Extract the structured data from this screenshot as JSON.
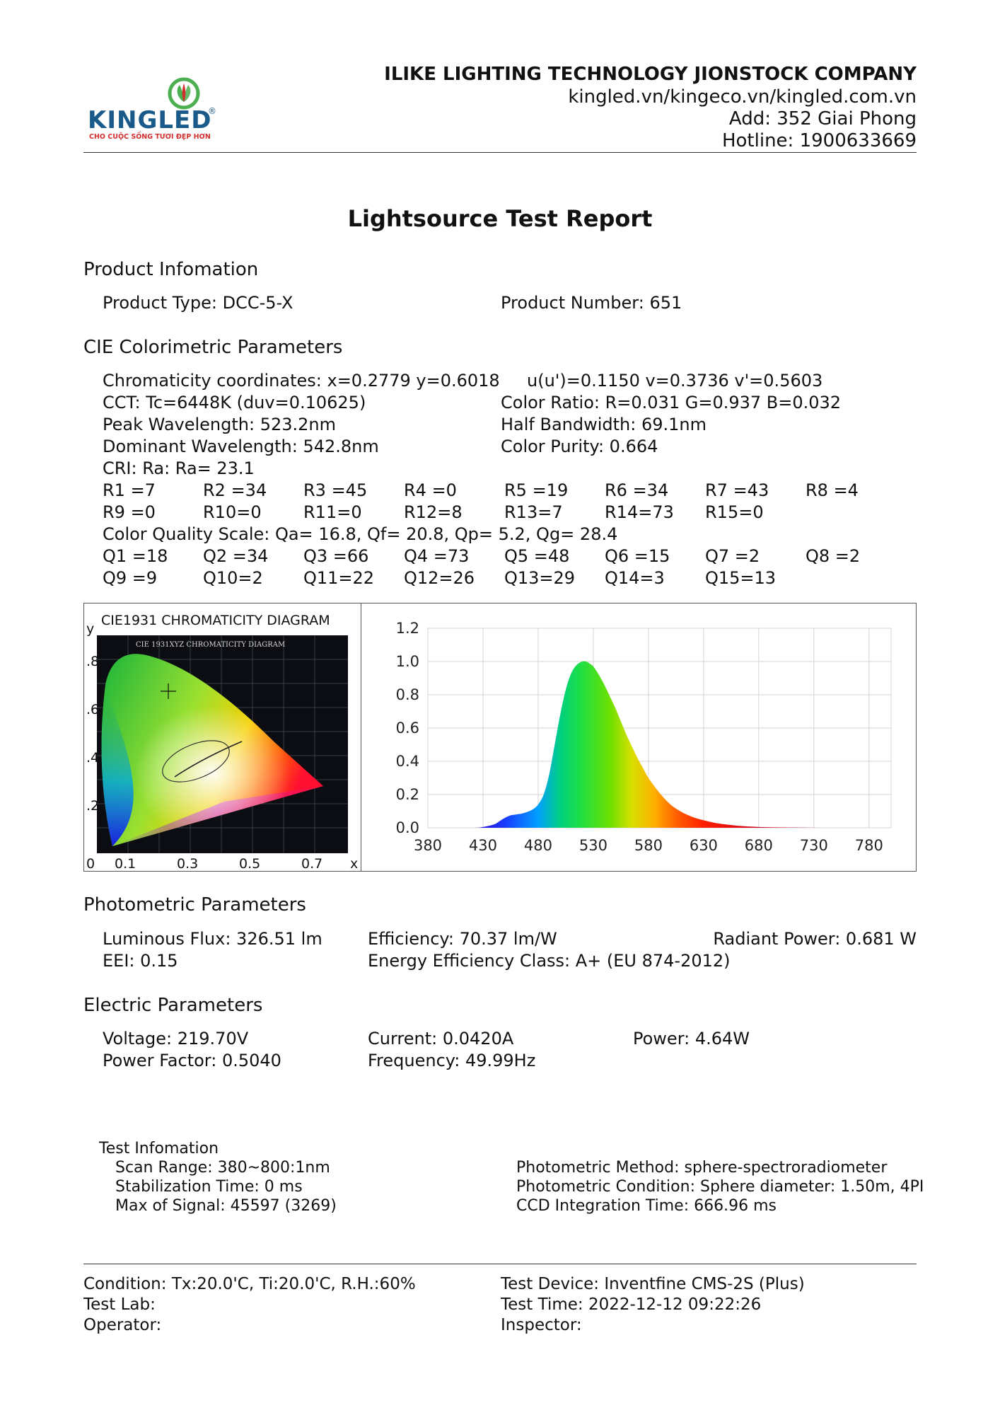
{
  "header": {
    "company": "ILIKE LIGHTING TECHNOLOGY JIONSTOCK COMPANY",
    "websites": "kingled.vn/kingeco.vn/kingled.com.vn",
    "address": "Add: 352 Giai Phong",
    "hotline": "Hotline: 1900633669",
    "logo_text": "KINGLED",
    "logo_tagline": "CHO CUỘC SỐNG TƯƠI ĐẸP HƠN",
    "logo_registered": "®"
  },
  "title": "Lightsource Test Report",
  "product": {
    "heading": "Product Infomation",
    "type": "Product Type: DCC-5-X",
    "number": "Product Number: 651"
  },
  "cie": {
    "heading": "CIE Colorimetric Parameters",
    "chromaticity": "Chromaticity coordinates: x=0.2779 y=0.6018",
    "uv": "u(u')=0.1150 v=0.3736 v'=0.5603",
    "cct": "CCT: Tc=6448K (duv=0.10625)",
    "color_ratio": "Color Ratio: R=0.031  G=0.937  B=0.032",
    "peak": "Peak Wavelength: 523.2nm",
    "half_bw": "Half Bandwidth: 69.1nm",
    "dominant": "Dominant Wavelength: 542.8nm",
    "purity": "Color Purity: 0.664",
    "cri": "CRI: Ra: Ra= 23.1",
    "r_row1": [
      "R1 =7",
      "R2 =34",
      "R3 =45",
      "R4 =0",
      "R5 =19",
      "R6 =34",
      "R7 =43",
      "R8 =4"
    ],
    "r_row2": [
      "R9 =0",
      "R10=0",
      "R11=0",
      "R12=8",
      "R13=7",
      "R14=73",
      "R15=0"
    ],
    "cqs": "Color Quality Scale: Qa= 16.8, Qf= 20.8, Qp=  5.2, Qg= 28.4",
    "q_row1": [
      "Q1 =18",
      "Q2 =34",
      "Q3 =66",
      "Q4 =73",
      "Q5 =48",
      "Q6 =15",
      "Q7 =2",
      "Q8 =2"
    ],
    "q_row2": [
      "Q9 =9",
      "Q10=2",
      "Q11=22",
      "Q12=26",
      "Q13=29",
      "Q14=3",
      "Q15=13"
    ]
  },
  "cie_diagram": {
    "label": "CIE1931 CHROMATICITY DIAGRAM",
    "inner_label": "CIE 1931XYZ CHROMATICITY DIAGRAM",
    "y_axis": "y",
    "x_axis": "x",
    "y_ticks": [
      ".8",
      ".6",
      ".4",
      ".2"
    ],
    "x_ticks": [
      "0",
      "0.1",
      "0.3",
      "0.5",
      "0.7"
    ],
    "point": {
      "x": 0.2779,
      "y": 0.6018
    }
  },
  "chart_data": {
    "type": "area",
    "title": "",
    "xlabel": "",
    "ylabel": "",
    "xlim": [
      380,
      800
    ],
    "ylim": [
      0,
      1.2
    ],
    "x_ticks": [
      "380",
      "430",
      "480",
      "530",
      "580",
      "630",
      "680",
      "730",
      "780"
    ],
    "y_ticks": [
      "1.2",
      "1.0",
      "0.8",
      "0.6",
      "0.4",
      "0.2",
      "0.0"
    ],
    "grid": true,
    "x": [
      380,
      420,
      430,
      440,
      445,
      450,
      455,
      460,
      465,
      470,
      475,
      480,
      485,
      490,
      495,
      500,
      505,
      510,
      515,
      520,
      523,
      525,
      530,
      535,
      540,
      545,
      550,
      555,
      560,
      565,
      570,
      575,
      580,
      590,
      600,
      610,
      620,
      630,
      640,
      650,
      660,
      670,
      680,
      690,
      700,
      720,
      750,
      800
    ],
    "values": [
      0,
      0,
      0.005,
      0.02,
      0.04,
      0.06,
      0.075,
      0.08,
      0.085,
      0.095,
      0.11,
      0.14,
      0.2,
      0.32,
      0.5,
      0.68,
      0.83,
      0.93,
      0.98,
      1.0,
      1.0,
      0.995,
      0.97,
      0.92,
      0.86,
      0.79,
      0.72,
      0.64,
      0.56,
      0.49,
      0.42,
      0.36,
      0.3,
      0.21,
      0.14,
      0.095,
      0.065,
      0.045,
      0.03,
      0.02,
      0.013,
      0.008,
      0.005,
      0.003,
      0.002,
      0.001,
      0,
      0
    ]
  },
  "photometric": {
    "heading": "Photometric Parameters",
    "flux": "Luminous Flux: 326.51 lm",
    "efficiency": "Efficiency: 70.37 lm/W",
    "radiant": "Radiant Power: 0.681 W",
    "eei": "EEI:  0.15",
    "class": "Energy Efficiency Class: A+ (EU 874-2012)"
  },
  "electric": {
    "heading": "Electric Parameters",
    "voltage": "Voltage: 219.70V",
    "current": "Current: 0.0420A",
    "power": "Power: 4.64W",
    "pf": "Power Factor: 0.5040",
    "frequency": "Frequency: 49.99Hz"
  },
  "test_info": {
    "heading": "Test Infomation",
    "scan": "Scan Range: 380~800:1nm",
    "stabilization": "Stabilization Time: 0 ms",
    "max_signal": "Max of Signal: 45597 (3269)",
    "method": "Photometric Method: sphere-spectroradiometer",
    "condition": "Photometric Condition: Sphere diameter: 1.50m, 4PI",
    "ccd": "CCD Integration Time: 666.96 ms"
  },
  "footer": {
    "condition": "Condition: Tx:20.0'C, Ti:20.0'C, R.H.:60%",
    "device": "Test Device: Inventfine CMS-2S (Plus)",
    "lab": "Test Lab:",
    "time": "Test Time: 2022-12-12 09:22:26",
    "operator": "Operator:",
    "inspector": "Inspector:"
  }
}
